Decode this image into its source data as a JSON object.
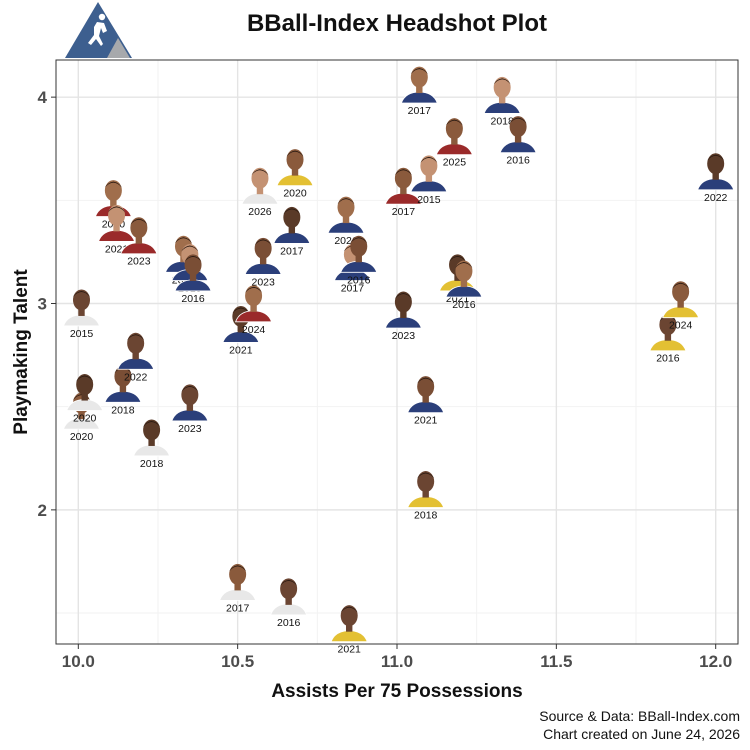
{
  "colors": {
    "logo_blue": "#3d5f8f",
    "logo_gray": "#a7a9ac",
    "panel_border": "#333333",
    "grid_major": "#e4e4e4",
    "grid_minor": "#f2f2f2"
  },
  "icons": {
    "logo": "bball-index-logo-icon",
    "point": "player-headshot-icon"
  },
  "chart_data": {
    "type": "scatter",
    "title": "BBall-Index Headshot Plot",
    "xlabel": "Assists Per 75 Possessions",
    "ylabel": "Playmaking Talent",
    "xlim": [
      9.93,
      12.07
    ],
    "ylim": [
      1.35,
      4.18
    ],
    "x_ticks": [
      10.0,
      10.5,
      11.0,
      11.5,
      12.0
    ],
    "x_tick_labels": [
      "10.0",
      "10.5",
      "11.0",
      "11.5",
      "12.0"
    ],
    "y_ticks": [
      2,
      3,
      4
    ],
    "y_tick_labels": [
      "2",
      "3",
      "4"
    ],
    "grid": true,
    "caption": [
      "Source & Data: BBall-Index.com",
      "Chart created on June 24, 2026"
    ],
    "points": [
      {
        "x": 10.01,
        "y": 2.93,
        "label": "2015",
        "jersey": "#e8e8e8"
      },
      {
        "x": 10.01,
        "y": 2.43,
        "label": "2020",
        "jersey": "#e8e8e8"
      },
      {
        "x": 10.02,
        "y": 2.52,
        "label": "2020",
        "jersey": "#e8e8e8"
      },
      {
        "x": 10.11,
        "y": 3.46,
        "label": "2020",
        "jersey": "#9a2a2a"
      },
      {
        "x": 10.12,
        "y": 3.34,
        "label": "2021",
        "jersey": "#9a2a2a"
      },
      {
        "x": 10.14,
        "y": 2.56,
        "label": "2018",
        "jersey": "#2b3f7a"
      },
      {
        "x": 10.18,
        "y": 2.72,
        "label": "2022",
        "jersey": "#2b3f7a"
      },
      {
        "x": 10.19,
        "y": 3.28,
        "label": "2023",
        "jersey": "#9a2a2a"
      },
      {
        "x": 10.23,
        "y": 2.3,
        "label": "2018",
        "jersey": "#e8e8e8"
      },
      {
        "x": 10.33,
        "y": 3.19,
        "label": "2018",
        "jersey": "#2b3f7a"
      },
      {
        "x": 10.35,
        "y": 3.15,
        "label": "2019",
        "jersey": "#2b3f7a"
      },
      {
        "x": 10.36,
        "y": 3.1,
        "label": "2016",
        "jersey": "#2b3f7a"
      },
      {
        "x": 10.35,
        "y": 2.47,
        "label": "2023",
        "jersey": "#2b3f7a"
      },
      {
        "x": 10.5,
        "y": 1.6,
        "label": "2017",
        "jersey": "#e8e8e8"
      },
      {
        "x": 10.51,
        "y": 2.85,
        "label": "2021",
        "jersey": "#2b3f7a"
      },
      {
        "x": 10.55,
        "y": 2.95,
        "label": "2024",
        "jersey": "#9a2a2a"
      },
      {
        "x": 10.57,
        "y": 3.52,
        "label": "2026",
        "jersey": "#e8e8e8"
      },
      {
        "x": 10.58,
        "y": 3.18,
        "label": "2023",
        "jersey": "#2b3f7a"
      },
      {
        "x": 10.66,
        "y": 1.53,
        "label": "2016",
        "jersey": "#e8e8e8"
      },
      {
        "x": 10.68,
        "y": 3.61,
        "label": "2020",
        "jersey": "#e3c033"
      },
      {
        "x": 10.67,
        "y": 3.33,
        "label": "2017",
        "jersey": "#2b3f7a"
      },
      {
        "x": 10.84,
        "y": 3.38,
        "label": "2021",
        "jersey": "#2b3f7a"
      },
      {
        "x": 10.86,
        "y": 3.15,
        "label": "2017",
        "jersey": "#2b3f7a"
      },
      {
        "x": 10.88,
        "y": 3.19,
        "label": "2016",
        "jersey": "#2b3f7a"
      },
      {
        "x": 10.85,
        "y": 1.4,
        "label": "2021",
        "jersey": "#e3c033"
      },
      {
        "x": 11.02,
        "y": 3.52,
        "label": "2017",
        "jersey": "#9a2a2a"
      },
      {
        "x": 11.02,
        "y": 2.92,
        "label": "2023",
        "jersey": "#2b3f7a"
      },
      {
        "x": 11.07,
        "y": 4.01,
        "label": "2017",
        "jersey": "#2b3f7a"
      },
      {
        "x": 11.1,
        "y": 3.58,
        "label": "2015",
        "jersey": "#2b3f7a"
      },
      {
        "x": 11.09,
        "y": 2.51,
        "label": "2021",
        "jersey": "#2b3f7a"
      },
      {
        "x": 11.09,
        "y": 2.05,
        "label": "2018",
        "jersey": "#e3c033"
      },
      {
        "x": 11.18,
        "y": 3.76,
        "label": "2025",
        "jersey": "#9a2a2a"
      },
      {
        "x": 11.19,
        "y": 3.1,
        "label": "2021",
        "jersey": "#e3c033"
      },
      {
        "x": 11.21,
        "y": 3.07,
        "label": "2016",
        "jersey": "#2b3f7a"
      },
      {
        "x": 11.33,
        "y": 3.96,
        "label": "2018",
        "jersey": "#2b3f7a"
      },
      {
        "x": 11.38,
        "y": 3.77,
        "label": "2016",
        "jersey": "#2b3f7a"
      },
      {
        "x": 11.85,
        "y": 2.81,
        "label": "2016",
        "jersey": "#e3c033"
      },
      {
        "x": 11.89,
        "y": 2.97,
        "label": "2024",
        "jersey": "#e3c033"
      },
      {
        "x": 12.0,
        "y": 3.59,
        "label": "2022",
        "jersey": "#2b3f7a"
      }
    ]
  }
}
